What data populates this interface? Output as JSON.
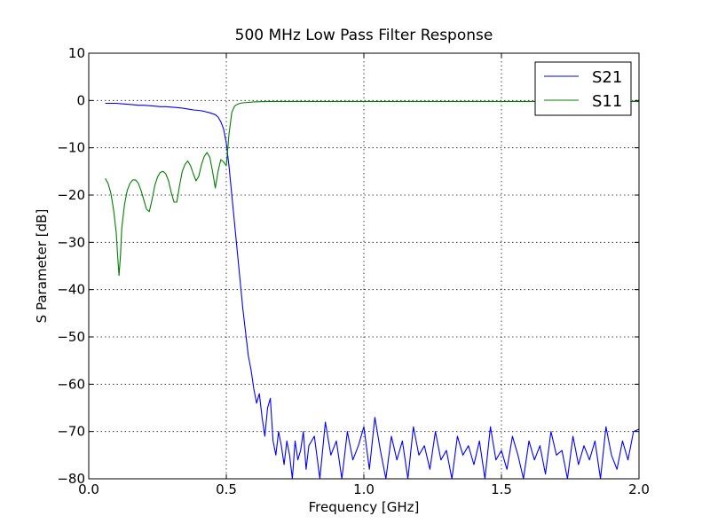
{
  "chart_data": {
    "type": "line",
    "title": "500 MHz Low Pass Filter Response",
    "xlabel": "Frequency [GHz]",
    "ylabel": "S Parameter [dB]",
    "xlim": [
      0.0,
      2.0
    ],
    "ylim": [
      -80,
      10
    ],
    "x_ticks": [
      0.0,
      0.5,
      1.0,
      1.5,
      2.0
    ],
    "x_tick_labels": [
      "0.0",
      "0.5",
      "1.0",
      "1.5",
      "2.0"
    ],
    "y_ticks": [
      10,
      0,
      -10,
      -20,
      -30,
      -40,
      -50,
      -60,
      -70,
      -80
    ],
    "y_tick_labels": [
      "10",
      "0",
      "−10",
      "−20",
      "−30",
      "−40",
      "−50",
      "−60",
      "−70",
      "−80"
    ],
    "grid": true,
    "legend_position": "top-right",
    "series": [
      {
        "name": "S21",
        "color": "#0000ff",
        "x": [
          0.06,
          0.08,
          0.1,
          0.12,
          0.14,
          0.16,
          0.18,
          0.2,
          0.22,
          0.24,
          0.26,
          0.28,
          0.3,
          0.32,
          0.34,
          0.36,
          0.38,
          0.4,
          0.42,
          0.44,
          0.46,
          0.47,
          0.48,
          0.49,
          0.5,
          0.51,
          0.52,
          0.53,
          0.54,
          0.55,
          0.56,
          0.57,
          0.58,
          0.59,
          0.6,
          0.61,
          0.62,
          0.63,
          0.64,
          0.65,
          0.66,
          0.67,
          0.68,
          0.69,
          0.7,
          0.71,
          0.72,
          0.73,
          0.74,
          0.75,
          0.76,
          0.77,
          0.78,
          0.79,
          0.8,
          0.82,
          0.84,
          0.86,
          0.88,
          0.9,
          0.92,
          0.94,
          0.96,
          0.98,
          1.0,
          1.02,
          1.04,
          1.06,
          1.08,
          1.1,
          1.12,
          1.14,
          1.16,
          1.18,
          1.2,
          1.22,
          1.24,
          1.26,
          1.28,
          1.3,
          1.32,
          1.34,
          1.36,
          1.38,
          1.4,
          1.42,
          1.44,
          1.46,
          1.48,
          1.5,
          1.52,
          1.54,
          1.56,
          1.58,
          1.6,
          1.62,
          1.64,
          1.66,
          1.68,
          1.7,
          1.72,
          1.74,
          1.76,
          1.78,
          1.8,
          1.82,
          1.84,
          1.86,
          1.88,
          1.9,
          1.92,
          1.94,
          1.96,
          1.98,
          2.0
        ],
        "y": [
          -0.6,
          -0.6,
          -0.6,
          -0.7,
          -0.8,
          -0.9,
          -1.0,
          -1.0,
          -1.1,
          -1.2,
          -1.3,
          -1.3,
          -1.4,
          -1.5,
          -1.6,
          -1.8,
          -2.0,
          -2.1,
          -2.3,
          -2.6,
          -3.0,
          -3.5,
          -4.5,
          -6.0,
          -9.0,
          -14.0,
          -20.0,
          -26.0,
          -32.0,
          -38.0,
          -44.0,
          -49.0,
          -54.0,
          -57.0,
          -61.0,
          -64.0,
          -62.0,
          -67.0,
          -71.0,
          -65.0,
          -63.0,
          -72.0,
          -75.0,
          -70.0,
          -73.0,
          -77.0,
          -72.0,
          -75.0,
          -80.0,
          -72.0,
          -76.0,
          -74.0,
          -70.0,
          -78.0,
          -73.0,
          -71.0,
          -80.0,
          -68.0,
          -75.0,
          -72.0,
          -80.0,
          -70.0,
          -76.0,
          -73.0,
          -69.0,
          -78.0,
          -67.0,
          -74.0,
          -80.0,
          -71.0,
          -76.0,
          -72.0,
          -80.0,
          -69.0,
          -75.0,
          -73.0,
          -78.0,
          -70.0,
          -76.0,
          -74.0,
          -80.0,
          -71.0,
          -75.0,
          -73.0,
          -77.0,
          -72.0,
          -80.0,
          -69.0,
          -76.0,
          -74.0,
          -78.0,
          -71.0,
          -75.0,
          -80.0,
          -72.0,
          -76.0,
          -73.0,
          -79.0,
          -70.0,
          -75.0,
          -74.0,
          -80.0,
          -71.0,
          -77.0,
          -73.0,
          -76.0,
          -72.0,
          -80.0,
          -69.0,
          -75.0,
          -78.0,
          -72.0,
          -76.0,
          -70.0,
          -69.5
        ]
      },
      {
        "name": "S11",
        "color": "#008000",
        "x": [
          0.06,
          0.07,
          0.08,
          0.09,
          0.1,
          0.105,
          0.11,
          0.115,
          0.12,
          0.13,
          0.14,
          0.15,
          0.16,
          0.17,
          0.18,
          0.19,
          0.2,
          0.21,
          0.22,
          0.23,
          0.24,
          0.25,
          0.26,
          0.27,
          0.28,
          0.29,
          0.3,
          0.31,
          0.32,
          0.33,
          0.34,
          0.35,
          0.36,
          0.37,
          0.38,
          0.39,
          0.4,
          0.41,
          0.42,
          0.43,
          0.44,
          0.45,
          0.46,
          0.47,
          0.48,
          0.49,
          0.5,
          0.51,
          0.52,
          0.53,
          0.54,
          0.55,
          0.56,
          0.58,
          0.6,
          0.65,
          0.7,
          0.8,
          0.9,
          1.0,
          1.1,
          1.2,
          1.3,
          1.4,
          1.5,
          1.6,
          1.7,
          1.8,
          1.9,
          2.0
        ],
        "y": [
          -16.5,
          -17.5,
          -19.5,
          -23.0,
          -28.0,
          -33.0,
          -37.0,
          -33.0,
          -27.0,
          -22.0,
          -19.0,
          -17.5,
          -16.8,
          -16.8,
          -17.5,
          -19.0,
          -21.0,
          -23.0,
          -23.5,
          -21.0,
          -18.0,
          -16.2,
          -15.2,
          -15.0,
          -15.5,
          -17.0,
          -19.5,
          -21.5,
          -21.5,
          -18.0,
          -15.0,
          -13.5,
          -12.8,
          -13.8,
          -15.5,
          -17.0,
          -16.0,
          -13.5,
          -11.8,
          -11.0,
          -12.0,
          -15.0,
          -18.5,
          -15.0,
          -12.5,
          -13.0,
          -13.8,
          -7.0,
          -2.5,
          -1.2,
          -0.8,
          -0.6,
          -0.5,
          -0.4,
          -0.3,
          -0.2,
          -0.2,
          -0.2,
          -0.2,
          -0.2,
          -0.2,
          -0.2,
          -0.2,
          -0.2,
          -0.2,
          -0.2,
          -0.2,
          -0.2,
          -0.2,
          -0.2
        ]
      }
    ]
  }
}
